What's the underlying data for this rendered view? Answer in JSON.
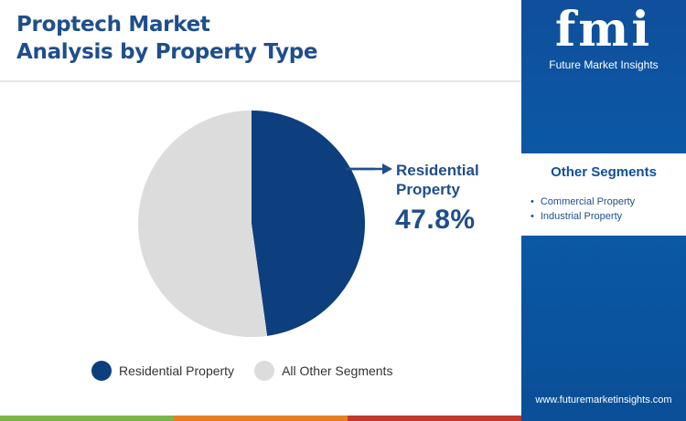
{
  "header": {
    "title_line1": "Proptech Market",
    "title_line2": "Analysis by Property Type"
  },
  "brand": {
    "logo_text": "fmi",
    "name": "Future Market Insights",
    "website": "www.futuremarketinsights.com"
  },
  "other_segments": {
    "title": "Other Segments",
    "items": [
      "Commercial Property",
      "Industrial Property"
    ]
  },
  "callout": {
    "label_line1": "Residential",
    "label_line2": "Property",
    "value": "47.8%"
  },
  "chart_data": {
    "type": "pie",
    "title": "Proptech Market Analysis by Property Type",
    "slices": [
      {
        "label": "Residential Property",
        "value": 47.8,
        "color": "#0d3f7f"
      },
      {
        "label": "All Other Segments",
        "value": 52.2,
        "color": "#dcdcdc"
      }
    ],
    "legend": "bottom"
  },
  "colors": {
    "primary": "#1f4e8c",
    "sidebar": "#0f4f9c",
    "bottom_bar": [
      "#7ab648",
      "#e67e22",
      "#c0392b",
      "#2e75b6"
    ]
  }
}
